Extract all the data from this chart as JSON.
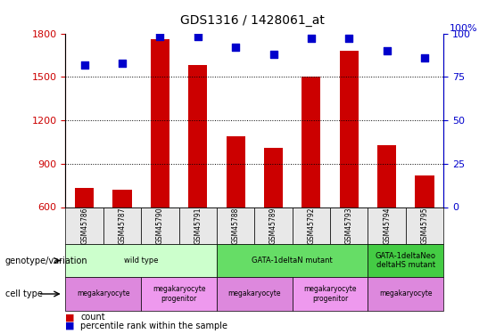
{
  "title": "GDS1316 / 1428061_at",
  "samples": [
    "GSM45786",
    "GSM45787",
    "GSM45790",
    "GSM45791",
    "GSM45788",
    "GSM45789",
    "GSM45792",
    "GSM45793",
    "GSM45794",
    "GSM45795"
  ],
  "bar_values": [
    730,
    720,
    1760,
    1580,
    1090,
    1010,
    1500,
    1680,
    1030,
    820
  ],
  "scatter_values": [
    82,
    83,
    98,
    98,
    92,
    88,
    97,
    97,
    90,
    86
  ],
  "bar_color": "#cc0000",
  "scatter_color": "#0000cc",
  "ymin": 600,
  "ymax": 1800,
  "yticks": [
    600,
    900,
    1200,
    1500,
    1800
  ],
  "y2min": 0,
  "y2max": 100,
  "y2ticks": [
    0,
    25,
    50,
    75,
    100
  ],
  "genotype_groups": [
    {
      "label": "wild type",
      "start": 0,
      "end": 4,
      "color": "#ccffcc"
    },
    {
      "label": "GATA-1deltaN mutant",
      "start": 4,
      "end": 8,
      "color": "#66dd66"
    },
    {
      "label": "GATA-1deltaNeo\ndeltaHS mutant",
      "start": 8,
      "end": 10,
      "color": "#44cc44"
    }
  ],
  "cell_type_groups": [
    {
      "label": "megakaryocyte",
      "start": 0,
      "end": 2,
      "color": "#dd88dd"
    },
    {
      "label": "megakaryocyte\nprogenitor",
      "start": 2,
      "end": 4,
      "color": "#ee99ee"
    },
    {
      "label": "megakaryocyte",
      "start": 4,
      "end": 6,
      "color": "#dd88dd"
    },
    {
      "label": "megakaryocyte\nprogenitor",
      "start": 6,
      "end": 8,
      "color": "#ee99ee"
    },
    {
      "label": "megakaryocyte",
      "start": 8,
      "end": 10,
      "color": "#dd88dd"
    }
  ],
  "legend_count_color": "#cc0000",
  "legend_scatter_color": "#0000cc",
  "xlabel_rotation": 90,
  "ax_left_label_color": "#cc0000",
  "ax_right_label_color": "#0000cc"
}
